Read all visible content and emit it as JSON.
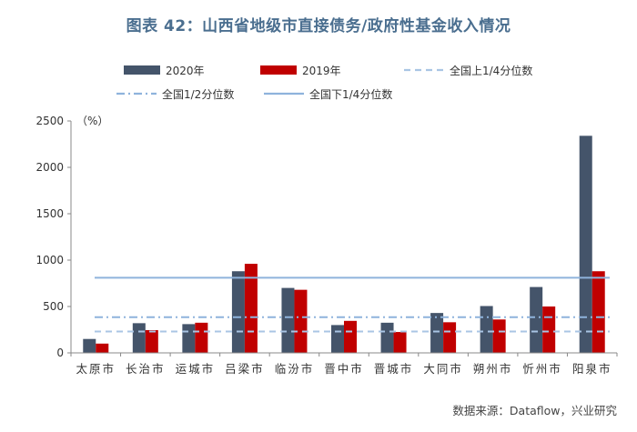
{
  "title": "图表 42：山西省地级市直接债务/政府性基金收入情况",
  "source": "数据来源：Dataflow，兴业研究",
  "colors": {
    "title": "#4a6e8f",
    "bar_2020": "#44546a",
    "bar_2019": "#c00000",
    "upper_quartile": "#a9c5e4",
    "median": "#8fb3dc",
    "lower_quartile": "#8fb3dc"
  },
  "chart_data": {
    "type": "bar",
    "title": "",
    "unit_label": "（%）",
    "xlabel": "",
    "ylabel": "",
    "ylim": [
      0,
      2500
    ],
    "yticks": [
      0,
      500,
      1000,
      1500,
      2000,
      2500
    ],
    "grid": false,
    "legend_position": "top",
    "categories": [
      "太原市",
      "长治市",
      "运城市",
      "吕梁市",
      "临汾市",
      "晋中市",
      "晋城市",
      "大同市",
      "朔州市",
      "忻州市",
      "阳泉市"
    ],
    "series": [
      {
        "name": "2020年",
        "values": [
          150,
          320,
          310,
          880,
          700,
          300,
          325,
          430,
          505,
          710,
          2340
        ]
      },
      {
        "name": "2019年",
        "values": [
          100,
          245,
          325,
          960,
          680,
          345,
          225,
          330,
          360,
          500,
          880
        ]
      }
    ],
    "reference_lines": [
      {
        "name": "全国上1/4分位数",
        "value": 230,
        "style": "dashed"
      },
      {
        "name": "全国1/2分位数",
        "value": 385,
        "style": "dashdot"
      },
      {
        "name": "全国下1/4分位数",
        "value": 810,
        "style": "solid"
      }
    ]
  }
}
